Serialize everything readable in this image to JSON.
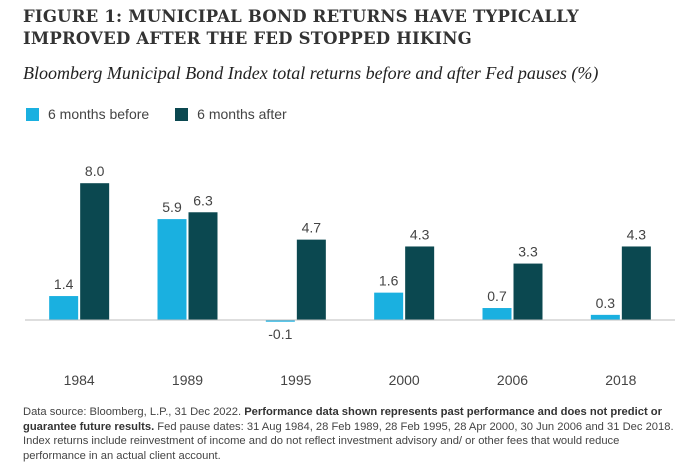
{
  "header": {
    "title": "FIGURE 1: MUNICIPAL BOND RETURNS HAVE TYPICALLY IMPROVED AFTER THE FED STOPPED HIKING",
    "subtitle": "Bloomberg Municipal Bond Index total returns before and after Fed pauses (%)"
  },
  "chart_data": {
    "type": "bar",
    "categories": [
      "1984",
      "1989",
      "1995",
      "2000",
      "2006",
      "2018"
    ],
    "series": [
      {
        "name": "6 months before",
        "color": "#1ab0e0",
        "values": [
          1.4,
          5.9,
          -0.1,
          1.6,
          0.7,
          0.3
        ],
        "labels": [
          "1.4",
          "5.9",
          "-0.1",
          "1.6",
          "0.7",
          "0.3"
        ]
      },
      {
        "name": "6 months after",
        "color": "#0b4850",
        "values": [
          8.0,
          6.3,
          4.7,
          4.3,
          3.3,
          4.3
        ],
        "labels": [
          "8.0",
          "6.3",
          "4.7",
          "4.3",
          "3.3",
          "4.3"
        ]
      }
    ],
    "ylim": [
      -0.5,
      8.5
    ],
    "grid": false,
    "legend_position": "top-left",
    "xlabel": "",
    "ylabel": ""
  },
  "footer": {
    "source_plain": "Data source: Bloomberg, L.P., 31 Dec 2022. ",
    "source_bold": "Performance data shown represents past performance and does not predict or guarantee future results.",
    "source_rest": " Fed pause dates: 31 Aug 1984, 28 Feb 1989, 28 Feb 1995, 28 Apr 2000, 30 Jun 2006 and 31 Dec 2018. Index returns include reinvestment of income and do not reflect investment advisory and/ or other fees that would reduce performance in an actual client account."
  }
}
